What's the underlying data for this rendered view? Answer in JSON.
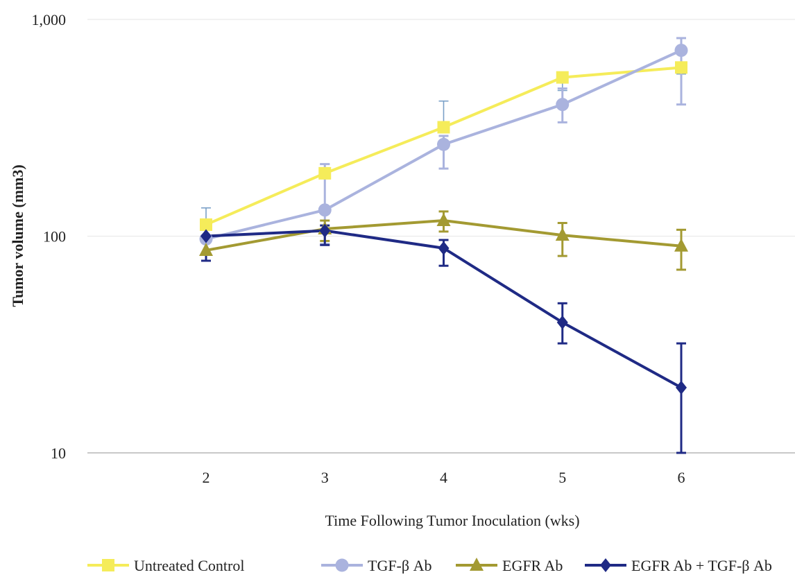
{
  "chart_data": {
    "type": "line",
    "title": "",
    "xlabel": "Time Following Tumor Inoculation (wks)",
    "ylabel": "Tumor volume (mm3)",
    "x": [
      2,
      3,
      4,
      5,
      6
    ],
    "x_tick_labels": [
      "2",
      "3",
      "4",
      "5",
      "6"
    ],
    "ylim": [
      10,
      1000
    ],
    "yscale": "log",
    "y_tick_values": [
      10,
      100,
      1000
    ],
    "y_tick_labels": [
      "10",
      "100",
      "1,000"
    ],
    "grid": "horizontal",
    "legend_position": "bottom",
    "series": [
      {
        "name": "Untreated Control",
        "color": "#f5ec5a",
        "marker": "square",
        "values": [
          113,
          195,
          318,
          540,
          600
        ],
        "err_upper": [
          135,
          215,
          420,
          470,
          560
        ],
        "err_lower": [
          null,
          null,
          null,
          null,
          null
        ]
      },
      {
        "name": "TGF-β Ab",
        "color": "#aab3de",
        "marker": "circle",
        "values": [
          97,
          132,
          265,
          405,
          720
        ],
        "err_upper": [
          null,
          215,
          290,
          480,
          820
        ],
        "err_lower": [
          null,
          92,
          205,
          335,
          405
        ]
      },
      {
        "name": "EGFR Ab",
        "color": "#a39a32",
        "marker": "triangle",
        "values": [
          86,
          108,
          118,
          101,
          90
        ],
        "err_upper": [
          null,
          118,
          130,
          115,
          107
        ],
        "err_lower": [
          null,
          95,
          105,
          81,
          70
        ]
      },
      {
        "name": "EGFR Ab + TGF-β Ab",
        "color": "#1f2a85",
        "marker": "diamond",
        "values": [
          100,
          106,
          88,
          40,
          20
        ],
        "err_upper": [
          null,
          112,
          96,
          49,
          32
        ],
        "err_lower": [
          77,
          91,
          73,
          32,
          10
        ]
      }
    ]
  }
}
